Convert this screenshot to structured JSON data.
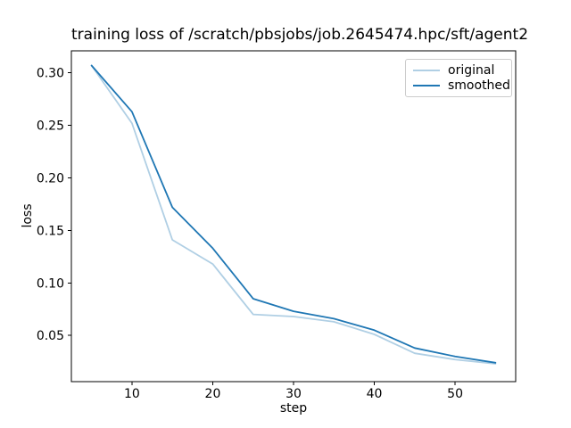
{
  "figure": {
    "title": "training loss of /scratch/pbsjobs/job.2645474.hpc/sft/agent2"
  },
  "chart_data": {
    "type": "line",
    "title": "training loss of /scratch/pbsjobs/job.2645474.hpc/sft/agent2",
    "xlabel": "step",
    "ylabel": "loss",
    "x": [
      5,
      10,
      15,
      20,
      25,
      30,
      35,
      40,
      45,
      50,
      55
    ],
    "series": [
      {
        "name": "original",
        "color": "#b0cfe4",
        "values": [
          0.307,
          0.252,
          0.141,
          0.118,
          0.07,
          0.068,
          0.063,
          0.051,
          0.033,
          0.027,
          0.023
        ]
      },
      {
        "name": "smoothed",
        "color": "#1f77b4",
        "values": [
          0.307,
          0.263,
          0.172,
          0.133,
          0.085,
          0.073,
          0.066,
          0.055,
          0.038,
          0.03,
          0.024
        ]
      }
    ],
    "xlim": [
      2.5,
      57.5
    ],
    "ylim": [
      0.006,
      0.321
    ],
    "xticks": [
      10,
      20,
      30,
      40,
      50
    ],
    "yticks": [
      0.05,
      0.1,
      0.15,
      0.2,
      0.25,
      0.3
    ],
    "grid": false,
    "legend_position": "upper right",
    "axis_color": "#000000"
  }
}
